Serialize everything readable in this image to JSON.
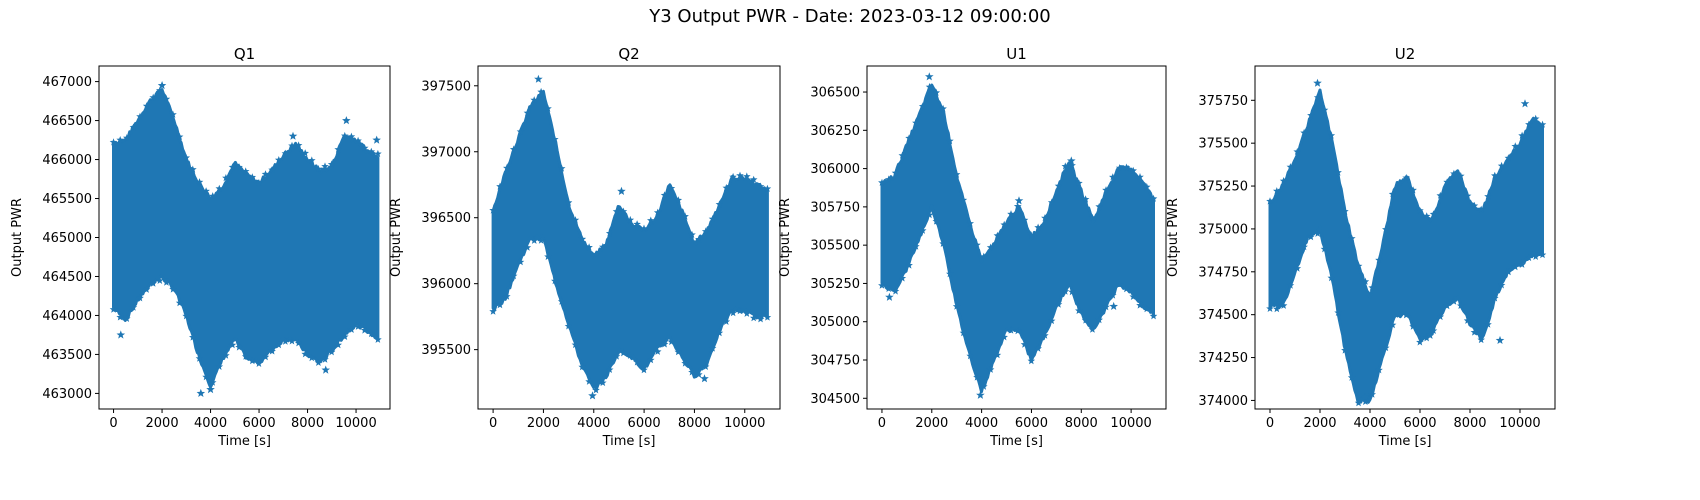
{
  "figure": {
    "title": "Y3 Output PWR - Date: 2023-03-12 09:00:00"
  },
  "colors": {
    "series": "#1f77b4",
    "axis": "#000000"
  },
  "chart_data": [
    {
      "type": "scatter",
      "title": "Q1",
      "xlabel": "Time [s]",
      "ylabel": "Output PWR",
      "marker": "star",
      "xlim": [
        -600,
        11400
      ],
      "ylim": [
        462800,
        467200
      ],
      "xticks": [
        0,
        2000,
        4000,
        6000,
        8000,
        10000
      ],
      "yticks": [
        463000,
        463500,
        464000,
        464500,
        465000,
        465500,
        466000,
        466500,
        467000
      ],
      "grid": false,
      "series": [
        {
          "x": [
            0,
            500,
            1000,
            1500,
            2000,
            2500,
            3000,
            3500,
            4000,
            4500,
            5000,
            5500,
            6000,
            6500,
            7000,
            7500,
            8000,
            8500,
            9000,
            9500,
            10000,
            10500,
            10900
          ],
          "upper": [
            466200,
            466250,
            466500,
            466750,
            466900,
            466500,
            466000,
            465700,
            465500,
            465650,
            465950,
            465800,
            465700,
            465850,
            466050,
            466200,
            466000,
            465850,
            465900,
            466300,
            466250,
            466100,
            466050
          ],
          "lower": [
            464100,
            463950,
            464200,
            464400,
            464500,
            464350,
            464000,
            463500,
            463100,
            463450,
            463700,
            463450,
            463400,
            463550,
            463700,
            463700,
            463500,
            463400,
            463550,
            463750,
            463900,
            463800,
            463700
          ],
          "outliers": [
            [
              3600,
              463000
            ],
            [
              4000,
              463050
            ],
            [
              7400,
              466300
            ],
            [
              9600,
              466500
            ],
            [
              2000,
              466950
            ],
            [
              10850,
              466250
            ],
            [
              300,
              463750
            ],
            [
              8750,
              463300
            ]
          ]
        }
      ]
    },
    {
      "type": "scatter",
      "title": "Q2",
      "xlabel": "Time [s]",
      "ylabel": "Output PWR",
      "marker": "star",
      "xlim": [
        -600,
        11400
      ],
      "ylim": [
        395050,
        397650
      ],
      "xticks": [
        0,
        2000,
        4000,
        6000,
        8000,
        10000
      ],
      "yticks": [
        395500,
        396000,
        396500,
        397000,
        397500
      ],
      "grid": false,
      "series": [
        {
          "x": [
            0,
            500,
            1000,
            1500,
            2000,
            2500,
            3000,
            3500,
            4000,
            4500,
            5000,
            5500,
            6000,
            6500,
            7000,
            7500,
            8000,
            8500,
            9000,
            9500,
            10000,
            10500,
            10900
          ],
          "upper": [
            396550,
            396850,
            397100,
            397350,
            397450,
            397050,
            396600,
            396350,
            396200,
            396300,
            396600,
            396450,
            396400,
            396500,
            396750,
            396550,
            396300,
            396400,
            396600,
            396800,
            396800,
            396750,
            396700
          ],
          "lower": [
            395800,
            395900,
            396150,
            396350,
            396350,
            396000,
            395700,
            395400,
            395200,
            395300,
            395500,
            395450,
            395350,
            395500,
            395600,
            395450,
            395300,
            395400,
            395650,
            395800,
            395800,
            395750,
            395750
          ],
          "outliers": [
            [
              1800,
              397550
            ],
            [
              3950,
              395150
            ],
            [
              8400,
              395280
            ],
            [
              5100,
              396700
            ]
          ]
        }
      ]
    },
    {
      "type": "scatter",
      "title": "U1",
      "xlabel": "Time [s]",
      "ylabel": "Output PWR",
      "marker": "star",
      "xlim": [
        -600,
        11400
      ],
      "ylim": [
        304430,
        306670
      ],
      "xticks": [
        0,
        2000,
        4000,
        6000,
        8000,
        10000
      ],
      "yticks": [
        304500,
        304750,
        305000,
        305250,
        305500,
        305750,
        306000,
        306250,
        306500
      ],
      "grid": false,
      "series": [
        {
          "x": [
            0,
            500,
            1000,
            1500,
            2000,
            2500,
            3000,
            3500,
            4000,
            4500,
            5000,
            5500,
            6000,
            6500,
            7000,
            7500,
            8000,
            8500,
            9000,
            9500,
            10000,
            10500,
            10900
          ],
          "upper": [
            305900,
            305950,
            306150,
            306350,
            306550,
            306350,
            305950,
            305650,
            305400,
            305500,
            305650,
            305750,
            305550,
            305650,
            305850,
            306050,
            305850,
            305650,
            305850,
            306000,
            306000,
            305900,
            305800
          ],
          "lower": [
            305250,
            305200,
            305350,
            305550,
            305750,
            305500,
            305100,
            304800,
            304550,
            304750,
            304950,
            304950,
            304750,
            304900,
            305100,
            305250,
            305050,
            304950,
            305100,
            305250,
            305200,
            305100,
            305050
          ],
          "outliers": [
            [
              1900,
              306600
            ],
            [
              3950,
              304520
            ],
            [
              5500,
              305790
            ],
            [
              7600,
              306050
            ],
            [
              300,
              305160
            ],
            [
              9300,
              305100
            ]
          ]
        }
      ]
    },
    {
      "type": "scatter",
      "title": "U2",
      "xlabel": "Time [s]",
      "ylabel": "Output PWR",
      "marker": "star",
      "xlim": [
        -600,
        11400
      ],
      "ylim": [
        373950,
        375950
      ],
      "xticks": [
        0,
        2000,
        4000,
        6000,
        8000,
        10000
      ],
      "yticks": [
        374000,
        374250,
        374500,
        374750,
        375000,
        375250,
        375500,
        375750
      ],
      "grid": false,
      "series": [
        {
          "x": [
            0,
            500,
            1000,
            1500,
            2000,
            2500,
            3000,
            3500,
            4000,
            4500,
            5000,
            5500,
            6000,
            6500,
            7000,
            7500,
            8000,
            8500,
            9000,
            9500,
            10000,
            10500,
            10900
          ],
          "upper": [
            375150,
            375250,
            375400,
            375600,
            375800,
            375500,
            375100,
            374800,
            374600,
            374900,
            375250,
            375300,
            375100,
            375050,
            375250,
            375350,
            375150,
            375100,
            375300,
            375400,
            375500,
            375650,
            375600
          ],
          "lower": [
            374550,
            374550,
            374750,
            374950,
            375000,
            374700,
            374300,
            374000,
            374000,
            374250,
            374500,
            374500,
            374350,
            374400,
            374550,
            374600,
            374450,
            374350,
            374600,
            374750,
            374800,
            374850,
            374850
          ],
          "outliers": [
            [
              1900,
              375850
            ],
            [
              10200,
              375730
            ],
            [
              3800,
              374020
            ],
            [
              9200,
              374350
            ],
            [
              6400,
              374380
            ]
          ]
        }
      ]
    }
  ]
}
